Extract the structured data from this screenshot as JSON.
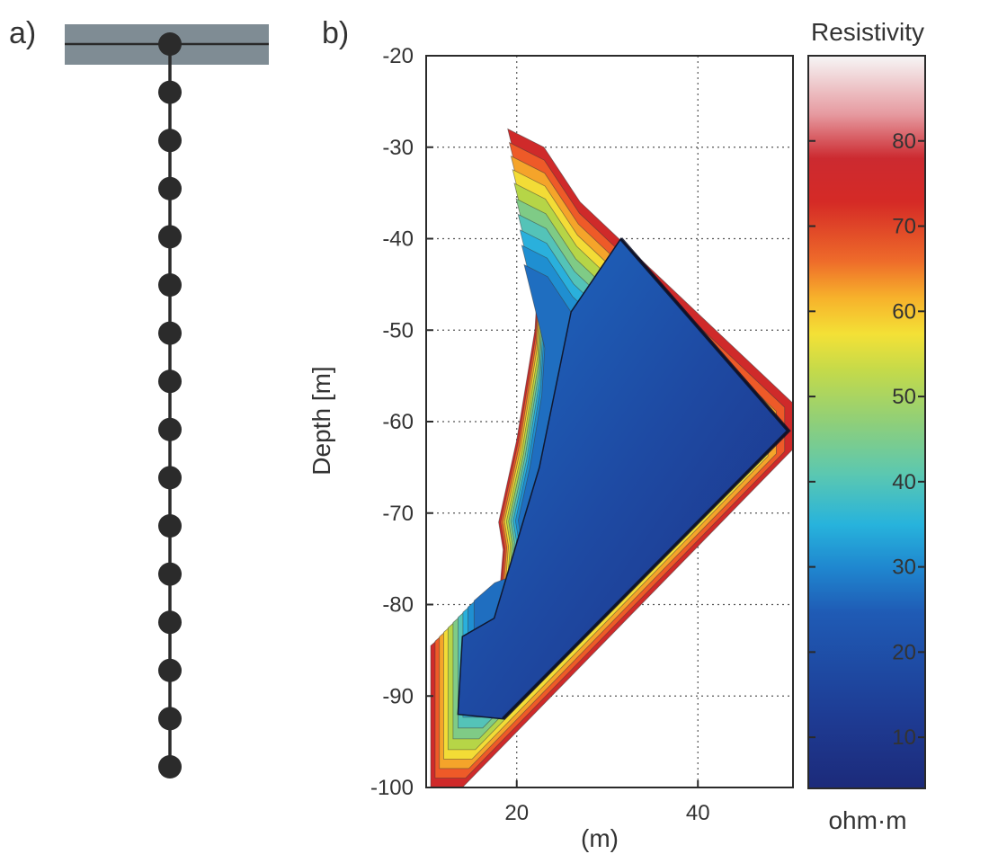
{
  "panels": {
    "a_label": "a)",
    "b_label": "b)"
  },
  "borehole": {
    "electrode_count": 16,
    "surface_band_color": "#7f8c94"
  },
  "chart_data": {
    "type": "heatmap",
    "title": "",
    "xlabel": "(m)",
    "ylabel": "Depth [m]",
    "xlim": [
      10,
      50.5
    ],
    "ylim": [
      -100,
      -20
    ],
    "xticks": [
      20,
      40
    ],
    "yticks": [
      -20,
      -30,
      -40,
      -50,
      -60,
      -70,
      -80,
      -90,
      -100
    ],
    "grid": true,
    "colorbar": {
      "title": "Resistivity",
      "unit": "ohm·m",
      "range": [
        4,
        90
      ],
      "ticks": [
        10,
        20,
        30,
        40,
        50,
        60,
        70,
        80
      ]
    },
    "region_outline": [
      [
        19.0,
        -28.0
      ],
      [
        23.0,
        -30.0
      ],
      [
        27.0,
        -36.0
      ],
      [
        50.5,
        -58.0
      ],
      [
        50.5,
        -63.0
      ],
      [
        14.0,
        -100.0
      ],
      [
        10.5,
        -100.0
      ],
      [
        10.5,
        -84.5
      ],
      [
        14.0,
        -81.5
      ],
      [
        18.0,
        -80.0
      ],
      [
        18.5,
        -74.0
      ],
      [
        18.0,
        -71.0
      ],
      [
        20.0,
        -62.0
      ],
      [
        22.0,
        -50.0
      ],
      [
        22.5,
        -42.0
      ],
      [
        20.5,
        -34.0
      ]
    ],
    "core": {
      "resistivity": 8,
      "points": [
        [
          31.5,
          -40.0
        ],
        [
          50.0,
          -61.0
        ],
        [
          18.5,
          -92.5
        ],
        [
          13.5,
          -92.0
        ],
        [
          14.0,
          -83.5
        ],
        [
          17.5,
          -81.5
        ],
        [
          22.5,
          -65.0
        ],
        [
          26.0,
          -48.0
        ]
      ]
    }
  },
  "colors": {
    "colormap": [
      "#1c2a7a",
      "#1e3c94",
      "#1f5bb5",
      "#1f86cf",
      "#27b3dc",
      "#5cc8b0",
      "#8fcf79",
      "#c4da4a",
      "#f4e136",
      "#f7b12b",
      "#ee6b2a",
      "#d52a26",
      "#c8252c",
      "#f6f6f6"
    ]
  }
}
